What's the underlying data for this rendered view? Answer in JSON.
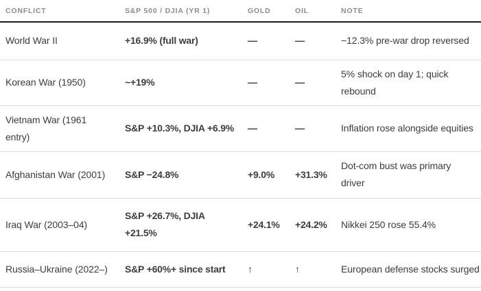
{
  "theme": {
    "background": "#ffffff",
    "header_text_color": "#8c8c8c",
    "body_text_color": "#3d3d3d",
    "header_border_color": "#1c1c1c",
    "row_divider_color": "#dcdcdc"
  },
  "chart_data": {
    "type": "table",
    "title": "",
    "columns": [
      "CONFLICT",
      "S&P 500 / DJIA (YR 1)",
      "GOLD",
      "OIL",
      "NOTE"
    ],
    "rows": [
      [
        "World War II",
        "+16.9% (full war)",
        "—",
        "—",
        "−12.3% pre-war drop reversed"
      ],
      [
        "Korean War (1950)",
        "~+19%",
        "—",
        "—",
        "5% shock on day 1; quick\nrebound"
      ],
      [
        "Vietnam War (1961\nentry)",
        "S&P +10.3%, DJIA +6.9%",
        "—",
        "—",
        "Inflation rose alongside equities"
      ],
      [
        "Afghanistan War (2001)",
        "S&P −24.8%",
        "+9.0%",
        "+31.3%",
        "Dot-com bust was primary\ndriver"
      ],
      [
        "Iraq War (2003–04)",
        "S&P +26.7%, DJIA\n+21.5%",
        "+24.1%",
        "+24.2%",
        "Nikkei 250 rose 55.4%"
      ],
      [
        "Russia–Ukraine (2022–)",
        "S&P +60%+ since start",
        "↑",
        "↑",
        "European defense stocks surged"
      ]
    ]
  }
}
